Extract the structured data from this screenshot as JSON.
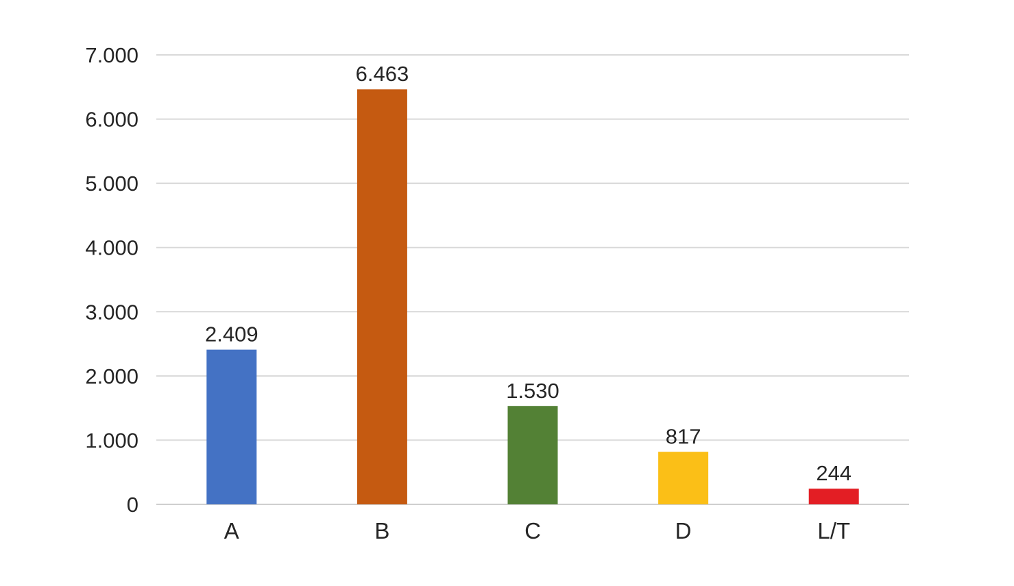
{
  "chart_data": {
    "type": "bar",
    "title": "",
    "xlabel": "",
    "ylabel": "",
    "categories": [
      "A",
      "B",
      "C",
      "D",
      "L/T"
    ],
    "values": [
      2409,
      6463,
      1530,
      817,
      244
    ],
    "value_labels": [
      "2.409",
      "6.463",
      "1.530",
      "817",
      "244"
    ],
    "colors": [
      "#4472c4",
      "#c55a11",
      "#538135",
      "#fbbf17",
      "#e31e24"
    ],
    "ylim": [
      0,
      7000
    ],
    "yticks": [
      0,
      1000,
      2000,
      3000,
      4000,
      5000,
      6000,
      7000
    ],
    "ytick_labels": [
      "0",
      "1.000",
      "2.000",
      "3.000",
      "4.000",
      "5.000",
      "6.000",
      "7.000"
    ],
    "grid": true,
    "legend": "none"
  }
}
